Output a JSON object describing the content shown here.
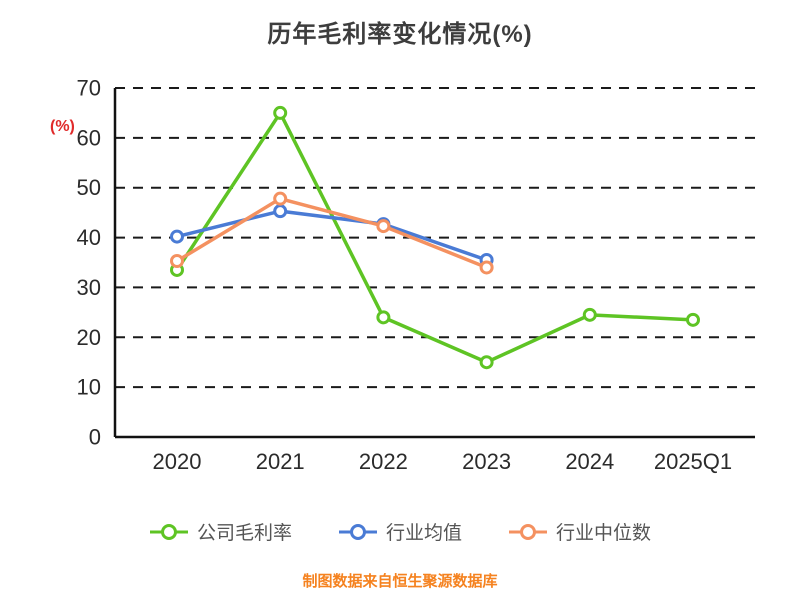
{
  "title": "历年毛利率变化情况(%)",
  "y_axis_unit": "(%)",
  "footer": "制图数据来自恒生聚源数据库",
  "colors": {
    "grid": "#1a1a1a",
    "axis": "#111111",
    "green": "#5ec424",
    "blue": "#4a7bd5",
    "orange": "#f49160",
    "title_text": "#3d3d3d",
    "unit_text": "#e02a2a",
    "footer_text": "#f5821f"
  },
  "chart_data": {
    "type": "line",
    "categories": [
      "2020",
      "2021",
      "2022",
      "2023",
      "2024",
      "2025Q1"
    ],
    "series": [
      {
        "name": "公司毛利率",
        "color": "#5ec424",
        "values": [
          33.5,
          65,
          24,
          15,
          24.5,
          23.5
        ]
      },
      {
        "name": "行业均值",
        "color": "#4a7bd5",
        "values": [
          40.2,
          45.3,
          42.7,
          35.5,
          null,
          null
        ]
      },
      {
        "name": "行业中位数",
        "color": "#f49160",
        "values": [
          35.3,
          47.8,
          42.3,
          34,
          null,
          null
        ]
      }
    ],
    "ylim": [
      0,
      70
    ],
    "yticks": [
      0,
      10,
      20,
      30,
      40,
      50,
      60,
      70
    ],
    "grid": "dashed-horizontal",
    "legend_position": "bottom",
    "marker": "open-circle"
  }
}
